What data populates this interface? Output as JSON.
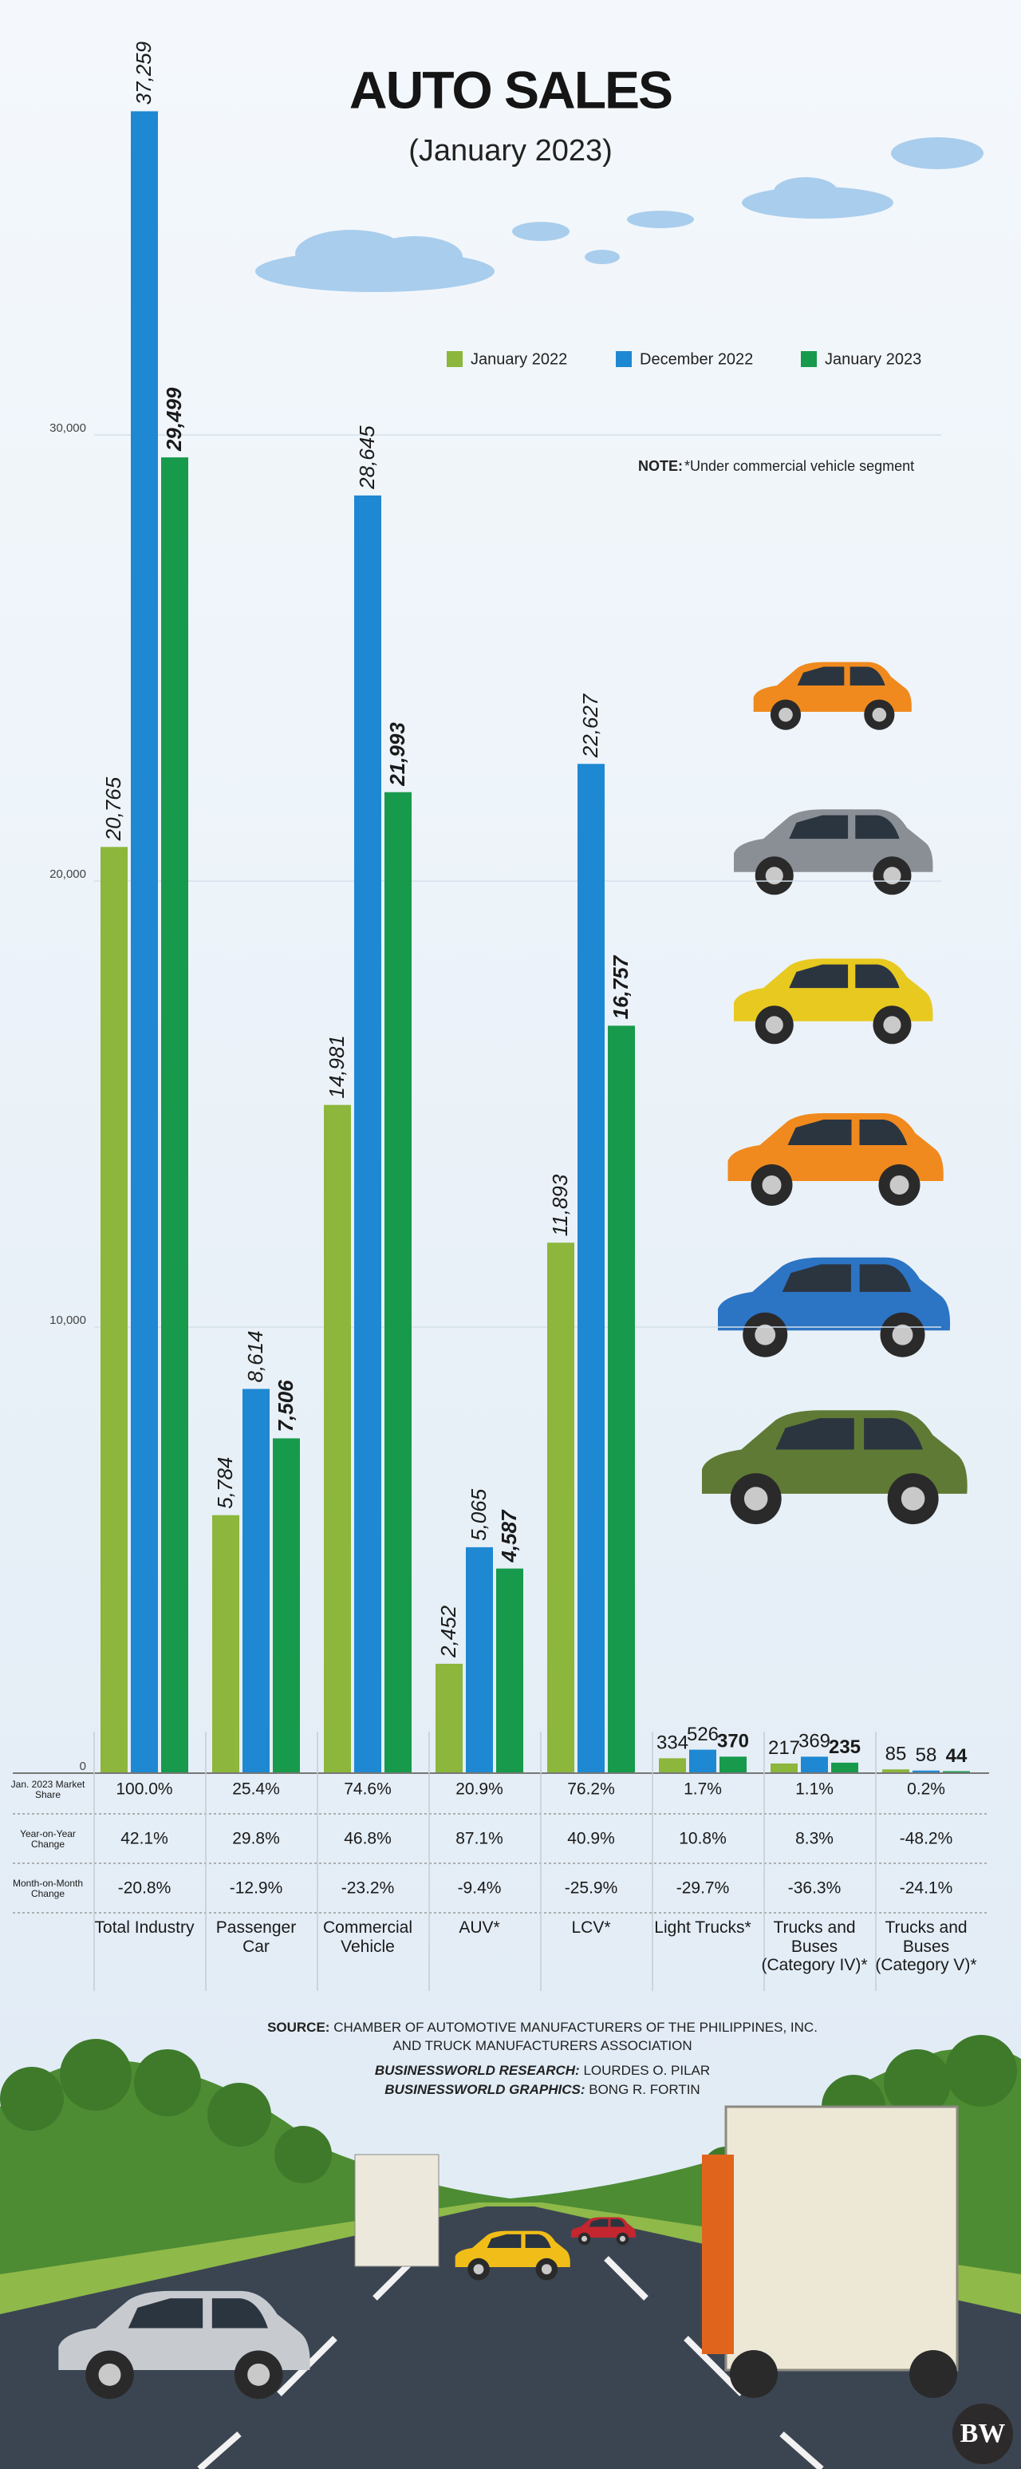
{
  "chart_data": {
    "type": "bar",
    "title": "AUTO SALES",
    "subtitle": "(January 2023)",
    "note_label": "NOTE:",
    "note": "*Under commercial vehicle segment",
    "categories": [
      "Total Industry",
      "Passenger Car",
      "Commercial Vehicle",
      "AUV*",
      "LCV*",
      "Light Trucks*",
      "Trucks and Buses (Category IV)*",
      "Trucks and Buses (Category V)*"
    ],
    "series": [
      {
        "name": "January 2022",
        "color": "#8cb63c",
        "values": [
          20765,
          5784,
          14981,
          2452,
          11893,
          334,
          217,
          85
        ],
        "value_labels": [
          "20,765",
          "5,784",
          "14,981",
          "2,452",
          "11,893",
          "334",
          "217",
          "85"
        ]
      },
      {
        "name": "December 2022",
        "color": "#1e88d2",
        "values": [
          37259,
          8614,
          28645,
          5065,
          22627,
          526,
          369,
          58
        ],
        "value_labels": [
          "37,259",
          "8,614",
          "28,645",
          "5,065",
          "22,627",
          "526",
          "369",
          "58"
        ]
      },
      {
        "name": "January 2023",
        "color": "#179a4b",
        "values": [
          29499,
          7506,
          21993,
          4587,
          16757,
          370,
          235,
          44
        ],
        "value_labels": [
          "29,499",
          "7,506",
          "21,993",
          "4,587",
          "16,757",
          "370",
          "235",
          "44"
        ]
      }
    ],
    "ylim": [
      0,
      38000
    ],
    "yticks": [
      0,
      {
        "value": 10000,
        "label": "10,000"
      },
      {
        "value": 20000,
        "label": "20,000"
      },
      {
        "value": 30000,
        "label": "30,000"
      }
    ],
    "grid": true
  },
  "table": {
    "row_labels": [
      "Jan. 2023 Market Share",
      "Year-on-Year Change",
      "Month-on-Month Change"
    ],
    "rows": [
      [
        "100.0%",
        "25.4%",
        "74.6%",
        "20.9%",
        "76.2%",
        "1.7%",
        "1.1%",
        "0.2%"
      ],
      [
        "42.1%",
        "29.8%",
        "46.8%",
        "87.1%",
        "40.9%",
        "10.8%",
        "8.3%",
        "-48.2%"
      ],
      [
        "-20.8%",
        "-12.9%",
        "-23.2%",
        "-9.4%",
        "-25.9%",
        "-29.7%",
        "-36.3%",
        "-24.1%"
      ]
    ]
  },
  "source": {
    "label": "SOURCE:",
    "text": "CHAMBER OF AUTOMOTIVE MANUFACTURERS OF THE PHILIPPINES, INC. AND TRUCK MANUFACTURERS ASSOCIATION"
  },
  "credits": {
    "research_label": "BUSINESSWORLD RESEARCH:",
    "research": "LOURDES O. PILAR",
    "graphics_label": "BUSINESSWORLD GRAPHICS:",
    "graphics": "BONG R. FORTIN"
  },
  "logo": "BW"
}
